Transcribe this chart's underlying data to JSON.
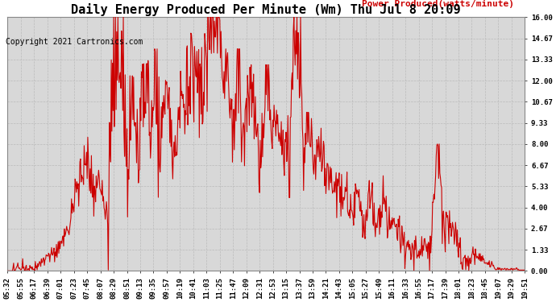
{
  "title": "Daily Energy Produced Per Minute (Wm) Thu Jul 8 20:09",
  "copyright": "Copyright 2021 Cartronics.com",
  "legend_label": "Power Produced(watts/minute)",
  "line_color": "#CC0000",
  "bg_color": "#FFFFFF",
  "plot_bg_color": "#D8D8D8",
  "grid_color": "#BBBBBB",
  "title_fontsize": 11,
  "copyright_fontsize": 7,
  "legend_fontsize": 8,
  "tick_fontsize": 6.5,
  "ylim": [
    0,
    16.0
  ],
  "yticks": [
    0.0,
    1.33,
    2.67,
    4.0,
    5.33,
    6.67,
    8.0,
    9.33,
    10.67,
    12.0,
    13.33,
    14.67,
    16.0
  ],
  "ytick_labels": [
    "0.00",
    "1.33",
    "2.67",
    "4.00",
    "5.33",
    "6.67",
    "8.00",
    "9.33",
    "10.67",
    "12.00",
    "13.33",
    "14.67",
    "16.00"
  ],
  "tick_times_str": [
    "05:32",
    "05:55",
    "06:17",
    "06:39",
    "07:01",
    "07:23",
    "07:45",
    "08:07",
    "08:29",
    "08:51",
    "09:13",
    "09:35",
    "09:57",
    "10:19",
    "10:41",
    "11:03",
    "11:25",
    "11:47",
    "12:09",
    "12:31",
    "12:53",
    "13:15",
    "13:37",
    "13:59",
    "14:21",
    "14:43",
    "15:05",
    "15:27",
    "15:49",
    "16:11",
    "16:33",
    "16:55",
    "17:17",
    "17:39",
    "18:01",
    "18:23",
    "18:45",
    "19:07",
    "19:29",
    "19:51"
  ]
}
